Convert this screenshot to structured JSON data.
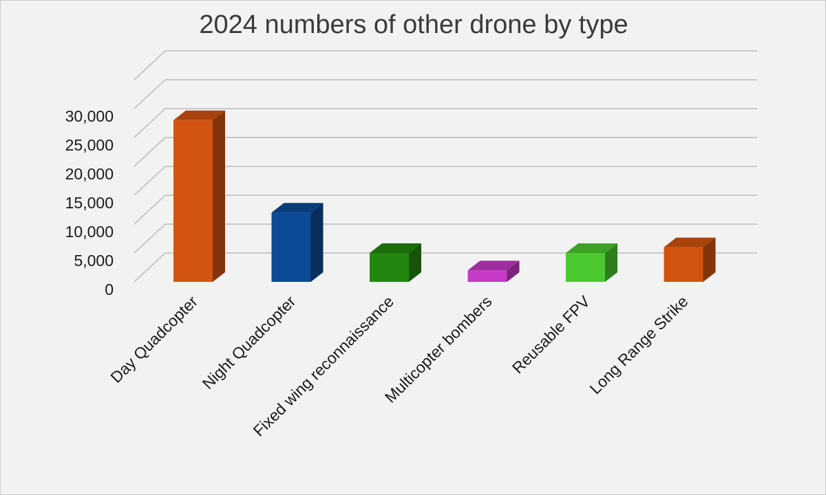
{
  "chart_data": {
    "type": "bar",
    "title": "2024 numbers of other drone by type",
    "categories": [
      "Day Quadcopter",
      "Night Quadcopter",
      "Fixed wing reconnaissance",
      "Multicopter bombers",
      "Reusable FPV",
      "Long Range Strike"
    ],
    "values": [
      28000,
      12000,
      5000,
      2000,
      5000,
      6000
    ],
    "colors": [
      "#d35410",
      "#0b4a96",
      "#23870f",
      "#c63ac6",
      "#4cc92e",
      "#d35410"
    ],
    "ylim": [
      0,
      30000
    ],
    "yticks": [
      "0",
      "5,000",
      "10,000",
      "15,000",
      "20,000",
      "25,000",
      "30,000"
    ],
    "grid": true,
    "style": "3d-column"
  }
}
